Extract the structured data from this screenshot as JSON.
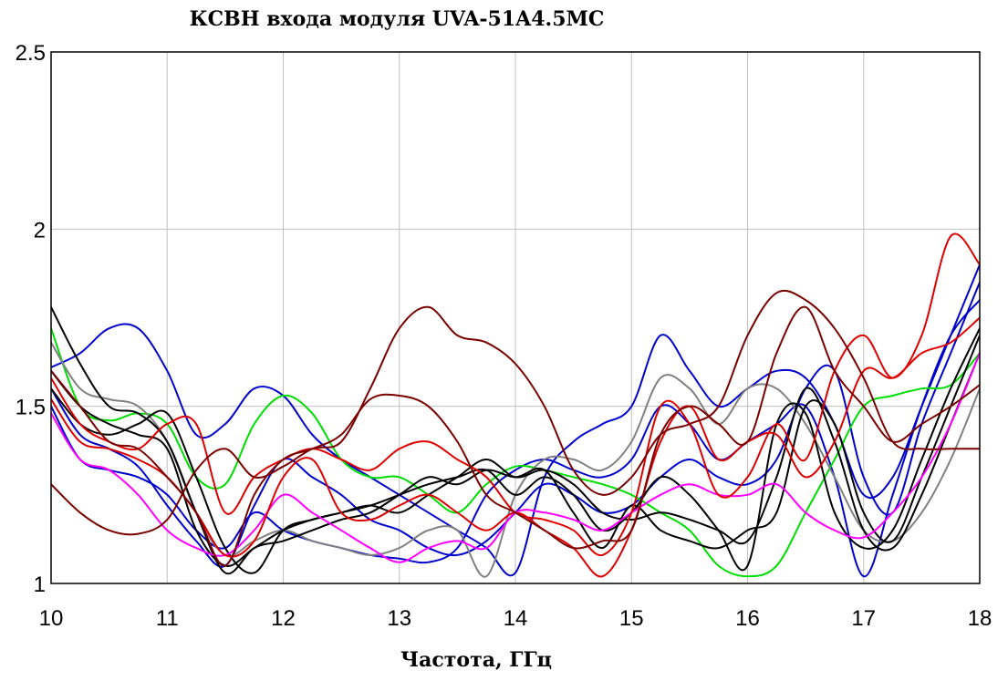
{
  "chart_data": {
    "type": "line",
    "title": "КСВН входа модуля UVA-51A4.5MC",
    "xlabel": "Частота, ГГц",
    "ylabel": "",
    "xlim": [
      10,
      18
    ],
    "ylim": [
      1,
      2.5
    ],
    "x_ticks": [
      "10",
      "11",
      "12",
      "13",
      "14",
      "15",
      "16",
      "17",
      "18"
    ],
    "y_ticks": [
      "1",
      "1.5",
      "2",
      "2.5"
    ],
    "grid": true,
    "legend": "none",
    "x": [
      10,
      10.25,
      10.5,
      10.75,
      11,
      11.25,
      11.5,
      11.75,
      12,
      12.25,
      12.5,
      12.75,
      13,
      13.25,
      13.5,
      13.75,
      14,
      14.25,
      14.5,
      14.75,
      15,
      15.25,
      15.5,
      15.75,
      16,
      16.25,
      16.5,
      16.75,
      17,
      17.25,
      17.5,
      17.75,
      18
    ],
    "series": [
      {
        "color": "#0000cc",
        "values": [
          1.61,
          1.65,
          1.72,
          1.72,
          1.6,
          1.42,
          1.45,
          1.55,
          1.53,
          1.42,
          1.35,
          1.3,
          1.25,
          1.2,
          1.15,
          1.1,
          1.03,
          1.3,
          1.4,
          1.45,
          1.5,
          1.7,
          1.6,
          1.5,
          1.55,
          1.6,
          1.58,
          1.45,
          1.25,
          1.3,
          1.5,
          1.7,
          1.9
        ]
      },
      {
        "color": "#0000cc",
        "values": [
          1.5,
          1.35,
          1.32,
          1.3,
          1.25,
          1.15,
          1.1,
          1.2,
          1.15,
          1.12,
          1.1,
          1.08,
          1.07,
          1.06,
          1.1,
          1.25,
          1.32,
          1.35,
          1.32,
          1.3,
          1.35,
          1.5,
          1.45,
          1.35,
          1.4,
          1.45,
          1.5,
          1.3,
          1.02,
          1.25,
          1.5,
          1.7,
          1.8
        ]
      },
      {
        "color": "#0000cc",
        "values": [
          1.55,
          1.42,
          1.38,
          1.33,
          1.22,
          1.12,
          1.05,
          1.22,
          1.35,
          1.3,
          1.25,
          1.18,
          1.15,
          1.1,
          1.08,
          1.12,
          1.2,
          1.28,
          1.25,
          1.2,
          1.22,
          1.3,
          1.35,
          1.3,
          1.28,
          1.35,
          1.55,
          1.6,
          1.3,
          1.2,
          1.45,
          1.65,
          1.85
        ]
      },
      {
        "color": "#00dd00",
        "values": [
          1.72,
          1.5,
          1.46,
          1.48,
          1.45,
          1.3,
          1.28,
          1.45,
          1.53,
          1.48,
          1.35,
          1.3,
          1.3,
          1.25,
          1.2,
          1.28,
          1.33,
          1.32,
          1.3,
          1.28,
          1.25,
          1.2,
          1.15,
          1.05,
          1.02,
          1.05,
          1.2,
          1.35,
          1.5,
          1.53,
          1.55,
          1.56,
          1.65
        ]
      },
      {
        "color": "#808080",
        "values": [
          1.68,
          1.55,
          1.52,
          1.5,
          1.4,
          1.2,
          1.08,
          1.12,
          1.15,
          1.12,
          1.1,
          1.08,
          1.1,
          1.15,
          1.15,
          1.02,
          1.25,
          1.35,
          1.35,
          1.32,
          1.4,
          1.58,
          1.55,
          1.45,
          1.55,
          1.55,
          1.45,
          1.3,
          1.15,
          1.12,
          1.2,
          1.35,
          1.55
        ]
      },
      {
        "color": "#000000",
        "values": [
          1.78,
          1.62,
          1.5,
          1.48,
          1.4,
          1.2,
          1.03,
          1.1,
          1.12,
          1.15,
          1.18,
          1.2,
          1.25,
          1.3,
          1.28,
          1.32,
          1.3,
          1.32,
          1.2,
          1.1,
          1.22,
          1.15,
          1.12,
          1.1,
          1.15,
          1.2,
          1.5,
          1.45,
          1.2,
          1.12,
          1.3,
          1.5,
          1.7
        ]
      },
      {
        "color": "#000000",
        "values": [
          1.6,
          1.5,
          1.45,
          1.42,
          1.38,
          1.15,
          1.05,
          1.1,
          1.15,
          1.18,
          1.2,
          1.22,
          1.2,
          1.25,
          1.3,
          1.35,
          1.3,
          1.32,
          1.28,
          1.2,
          1.18,
          1.2,
          1.18,
          1.15,
          1.12,
          1.3,
          1.55,
          1.4,
          1.15,
          1.1,
          1.25,
          1.45,
          1.65
        ]
      },
      {
        "color": "#000000",
        "values": [
          1.55,
          1.45,
          1.42,
          1.45,
          1.48,
          1.3,
          1.1,
          1.03,
          1.15,
          1.18,
          1.2,
          1.22,
          1.25,
          1.28,
          1.3,
          1.32,
          1.25,
          1.3,
          1.25,
          1.15,
          1.2,
          1.3,
          1.25,
          1.15,
          1.05,
          1.45,
          1.48,
          1.2,
          1.1,
          1.15,
          1.35,
          1.55,
          1.72
        ]
      },
      {
        "color": "#ff00ff",
        "values": [
          1.48,
          1.35,
          1.32,
          1.25,
          1.15,
          1.1,
          1.08,
          1.15,
          1.25,
          1.2,
          1.15,
          1.1,
          1.06,
          1.1,
          1.12,
          1.1,
          1.2,
          1.2,
          1.18,
          1.15,
          1.2,
          1.25,
          1.28,
          1.25,
          1.25,
          1.28,
          1.2,
          1.15,
          1.13,
          1.2,
          1.3,
          1.45,
          1.65
        ]
      },
      {
        "color": "#dd0000",
        "values": [
          1.58,
          1.45,
          1.4,
          1.38,
          1.45,
          1.45,
          1.2,
          1.3,
          1.35,
          1.38,
          1.35,
          1.32,
          1.38,
          1.4,
          1.35,
          1.3,
          1.2,
          1.18,
          1.15,
          1.08,
          1.2,
          1.5,
          1.45,
          1.25,
          1.3,
          1.45,
          1.35,
          1.6,
          1.7,
          1.58,
          1.7,
          1.98,
          1.9
        ]
      },
      {
        "color": "#dd0000",
        "values": [
          1.52,
          1.4,
          1.38,
          1.35,
          1.3,
          1.2,
          1.08,
          1.12,
          1.3,
          1.35,
          1.2,
          1.18,
          1.22,
          1.25,
          1.2,
          1.15,
          1.2,
          1.15,
          1.1,
          1.02,
          1.15,
          1.4,
          1.5,
          1.35,
          1.4,
          1.42,
          1.3,
          1.4,
          1.6,
          1.58,
          1.65,
          1.68,
          1.75
        ]
      },
      {
        "color": "#7a0000",
        "values": [
          1.28,
          1.2,
          1.15,
          1.14,
          1.18,
          1.32,
          1.38,
          1.3,
          1.33,
          1.38,
          1.4,
          1.55,
          1.72,
          1.78,
          1.7,
          1.68,
          1.62,
          1.5,
          1.32,
          1.25,
          1.3,
          1.42,
          1.45,
          1.5,
          1.7,
          1.82,
          1.8,
          1.72,
          1.58,
          1.4,
          1.38,
          1.38,
          1.38
        ]
      },
      {
        "color": "#7a0000",
        "values": [
          1.6,
          1.5,
          1.4,
          1.38,
          1.3,
          1.2,
          1.05,
          1.25,
          1.35,
          1.38,
          1.42,
          1.52,
          1.53,
          1.5,
          1.4,
          1.25,
          1.2,
          1.15,
          1.1,
          1.12,
          1.15,
          1.42,
          1.5,
          1.45,
          1.4,
          1.65,
          1.78,
          1.6,
          1.5,
          1.4,
          1.45,
          1.5,
          1.56
        ]
      }
    ]
  }
}
